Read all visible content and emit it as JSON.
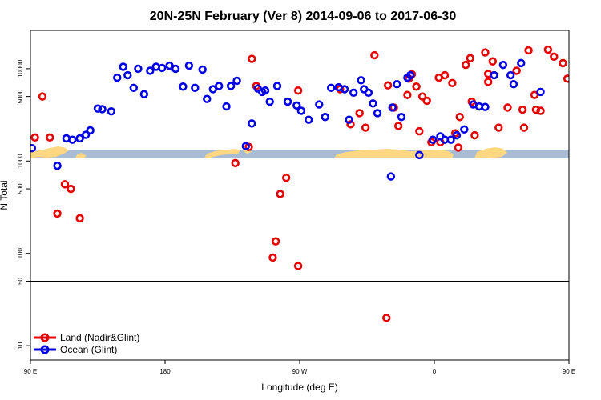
{
  "chart_data": {
    "type": "scatter",
    "title": "20N-25N February (Ver 8)   2014-09-06 to 2017-06-30",
    "xlabel": "Longitude (deg E)",
    "ylabel": "N Total",
    "x_scale": "linear",
    "y_scale": "log",
    "xlim": [
      90,
      450
    ],
    "ylim": [
      7,
      26000
    ],
    "x_ticks": [
      {
        "value": 90,
        "label": "90 E"
      },
      {
        "value": 180,
        "label": "180"
      },
      {
        "value": 270,
        "label": "90 W"
      },
      {
        "value": 360,
        "label": "0"
      },
      {
        "value": 450,
        "label": "90 E"
      },
      {
        "value": 540,
        "label": "180"
      }
    ],
    "y_ticks": [
      {
        "value": 10,
        "label": "10"
      },
      {
        "value": 50,
        "label": "50"
      },
      {
        "value": 100,
        "label": "100"
      },
      {
        "value": 500,
        "label": "500"
      },
      {
        "value": 1000,
        "label": "1000"
      },
      {
        "value": 5000,
        "label": "5000"
      },
      {
        "value": 10000,
        "label": "10000"
      }
    ],
    "reference_line": {
      "y": 50
    },
    "map_band": {
      "ocean_color": "#A9BCD6",
      "land_color": "#FDD782"
    },
    "legend": {
      "position": "bottom-left"
    },
    "series": [
      {
        "name": "Land (Nadir&Glint)",
        "color": "#E60000",
        "points": [
          [
            93,
            1800
          ],
          [
            98,
            5000
          ],
          [
            103,
            1800
          ],
          [
            108,
            270
          ],
          [
            113,
            560
          ],
          [
            117,
            500
          ],
          [
            123,
            240
          ],
          [
            227,
            950
          ],
          [
            236,
            1420
          ],
          [
            238,
            12800
          ],
          [
            241,
            6500
          ],
          [
            252,
            90
          ],
          [
            254,
            135
          ],
          [
            257,
            440
          ],
          [
            261,
            660
          ],
          [
            269,
            73
          ],
          [
            269,
            5800
          ],
          [
            297,
            6000
          ],
          [
            304,
            2500
          ],
          [
            310,
            3300
          ],
          [
            314,
            2300
          ],
          [
            320,
            14000
          ],
          [
            328,
            20
          ],
          [
            329,
            6600
          ],
          [
            333,
            3800
          ],
          [
            336,
            2400
          ],
          [
            342,
            5200
          ],
          [
            343,
            7800
          ],
          [
            345,
            8700
          ],
          [
            348,
            6400
          ],
          [
            350,
            2100
          ],
          [
            352,
            5000
          ],
          [
            355,
            4500
          ],
          [
            358,
            1600
          ],
          [
            363,
            8000
          ],
          [
            364,
            1600
          ],
          [
            367,
            8500
          ],
          [
            372,
            7000
          ],
          [
            374,
            2000
          ],
          [
            376,
            1400
          ],
          [
            377,
            3000
          ],
          [
            381,
            11000
          ],
          [
            384,
            13000
          ],
          [
            385,
            4400
          ],
          [
            387,
            1900
          ],
          [
            394,
            15000
          ],
          [
            396,
            7200
          ],
          [
            396,
            8800
          ],
          [
            399,
            12000
          ],
          [
            403,
            2300
          ],
          [
            409,
            3800
          ],
          [
            415,
            9500
          ],
          [
            419,
            3600
          ],
          [
            420,
            2300
          ],
          [
            423,
            15800
          ],
          [
            427,
            5200
          ],
          [
            428,
            3600
          ],
          [
            431,
            3500
          ],
          [
            436,
            16100
          ],
          [
            440,
            13500
          ],
          [
            446,
            11500
          ],
          [
            449,
            7800
          ]
        ]
      },
      {
        "name": "Ocean (Glint)",
        "color": "#0000E6",
        "points": [
          [
            91,
            1380
          ],
          [
            108,
            890
          ],
          [
            114,
            1760
          ],
          [
            118,
            1700
          ],
          [
            123,
            1760
          ],
          [
            127,
            1920
          ],
          [
            130,
            2150
          ],
          [
            135,
            3700
          ],
          [
            138,
            3650
          ],
          [
            144,
            3450
          ],
          [
            148,
            8000
          ],
          [
            152,
            10500
          ],
          [
            155,
            8500
          ],
          [
            159,
            6200
          ],
          [
            162,
            10000
          ],
          [
            166,
            5300
          ],
          [
            170,
            9500
          ],
          [
            174,
            10500
          ],
          [
            178,
            10200
          ],
          [
            183,
            10800
          ],
          [
            187,
            10000
          ],
          [
            192,
            6400
          ],
          [
            196,
            10800
          ],
          [
            200,
            6200
          ],
          [
            205,
            9800
          ],
          [
            208,
            4700
          ],
          [
            212,
            6000
          ],
          [
            216,
            6500
          ],
          [
            221,
            3900
          ],
          [
            224,
            6500
          ],
          [
            228,
            7400
          ],
          [
            234,
            1450
          ],
          [
            238,
            2550
          ],
          [
            242,
            6100
          ],
          [
            245,
            5600
          ],
          [
            247,
            5800
          ],
          [
            250,
            4400
          ],
          [
            255,
            6500
          ],
          [
            262,
            4400
          ],
          [
            268,
            4000
          ],
          [
            271,
            3500
          ],
          [
            276,
            2800
          ],
          [
            283,
            4100
          ],
          [
            287,
            3000
          ],
          [
            291,
            6200
          ],
          [
            296,
            6300
          ],
          [
            300,
            6000
          ],
          [
            303,
            2800
          ],
          [
            306,
            5500
          ],
          [
            311,
            7500
          ],
          [
            313,
            6000
          ],
          [
            316,
            5500
          ],
          [
            319,
            4200
          ],
          [
            322,
            3300
          ],
          [
            331,
            680
          ],
          [
            332,
            3800
          ],
          [
            335,
            6800
          ],
          [
            338,
            3000
          ],
          [
            342,
            8000
          ],
          [
            344,
            8500
          ],
          [
            350,
            1160
          ],
          [
            359,
            1700
          ],
          [
            364,
            1850
          ],
          [
            367,
            1700
          ],
          [
            371,
            1700
          ],
          [
            375,
            1900
          ],
          [
            380,
            2200
          ],
          [
            386,
            4100
          ],
          [
            390,
            3900
          ],
          [
            394,
            3850
          ],
          [
            400,
            8500
          ],
          [
            406,
            11000
          ],
          [
            411,
            8500
          ],
          [
            413,
            6800
          ],
          [
            418,
            11500
          ],
          [
            431,
            5600
          ]
        ]
      }
    ]
  }
}
